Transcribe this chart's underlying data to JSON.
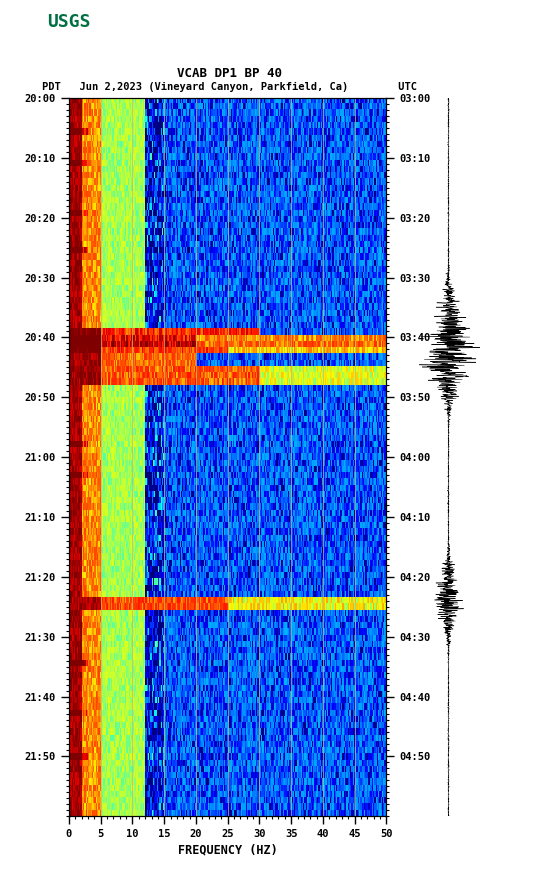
{
  "title_line1": "VCAB DP1 BP 40",
  "title_line2": "PDT   Jun 2,2023 (Vineyard Canyon, Parkfield, Ca)        UTC",
  "xlabel": "FREQUENCY (HZ)",
  "freq_min": 0,
  "freq_max": 50,
  "left_yticks_labels": [
    "20:00",
    "20:10",
    "20:20",
    "20:30",
    "20:40",
    "20:50",
    "21:00",
    "21:10",
    "21:20",
    "21:30",
    "21:40",
    "21:50"
  ],
  "right_yticks_labels": [
    "03:00",
    "03:10",
    "03:20",
    "03:30",
    "03:40",
    "03:50",
    "04:00",
    "04:10",
    "04:20",
    "04:30",
    "04:40",
    "04:50"
  ],
  "freq_ticks": [
    0,
    5,
    10,
    15,
    20,
    25,
    30,
    35,
    40,
    45,
    50
  ],
  "vertical_grid_freqs": [
    5,
    10,
    15,
    20,
    25,
    30,
    35,
    40,
    45
  ],
  "background_color": "#ffffff",
  "colormap": "jet",
  "n_time": 115,
  "n_freq": 250,
  "rand_seed": 42,
  "waveform_color": "#000000",
  "usgs_green": "#006f41",
  "font_family": "monospace",
  "event1_times": [
    37,
    38,
    39,
    40,
    41,
    42
  ],
  "event2_times": [
    43,
    44,
    45
  ],
  "event3_times": [
    80,
    81
  ],
  "vline_color": "#808080",
  "vline_alpha": 0.6,
  "figsize": [
    5.52,
    8.92
  ],
  "dpi": 100
}
